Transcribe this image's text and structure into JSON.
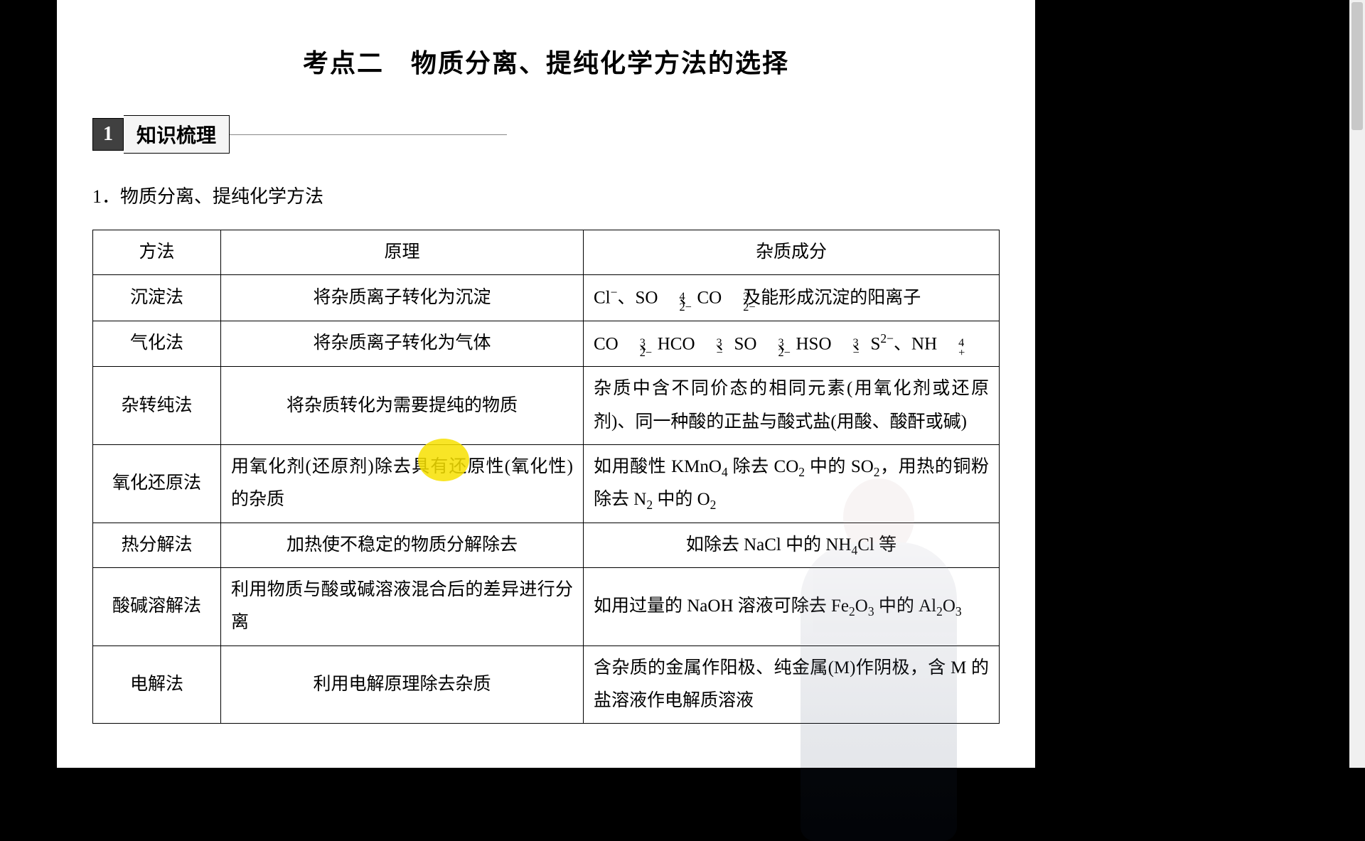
{
  "title": "考点二　物质分离、提纯化学方法的选择",
  "section": {
    "num": "1",
    "label": "知识梳理"
  },
  "sub_heading": "1．物质分离、提纯化学方法",
  "table": {
    "headers": {
      "method": "方法",
      "principle": "原理",
      "impurity": "杂质成分"
    },
    "rows": [
      {
        "method": "沉淀法",
        "principle": "将杂质离子转化为沉淀",
        "principle_align": "center",
        "impurity_html": "Cl<sup>−</sup>、SO<span class='ion ion-pad'><span class='up'>2−</span><span class='dn'>4</span></span>、CO<span class='ion ion-pad'><span class='up'>2−</span><span class='dn'>3</span></span>及能形成沉淀的阳离子",
        "impurity_align": "left"
      },
      {
        "method": "气化法",
        "principle": "将杂质离子转化为气体",
        "principle_align": "center",
        "impurity_html": "CO<span class='ion ion-pad'><span class='up'>2−</span><span class='dn'>3</span></span>、HCO<span class='ion ion-pad'><span class='up'>−</span><span class='dn'>3</span></span>、SO<span class='ion ion-pad'><span class='up'>2−</span><span class='dn'>3</span></span>、HSO<span class='ion ion-pad'><span class='up'>−</span><span class='dn'>3</span></span>、S<sup>2−</sup>、NH<span class='ion ion-pad'><span class='up'>+</span><span class='dn'>4</span></span>",
        "impurity_align": "left"
      },
      {
        "method": "杂转纯法",
        "principle": "将杂质转化为需要提纯的物质",
        "principle_align": "center",
        "impurity_html": "杂质中含不同价态的相同元素(用氧化剂或还原剂)、同一种酸的正盐与酸式盐(用酸、酸酐或碱)",
        "impurity_align": "left"
      },
      {
        "method": "氧化还原法",
        "principle": "用氧化剂(还原剂)除去具有还原性(氧化性)的杂质",
        "principle_align": "left",
        "impurity_html": "如用酸性 KMnO<sub>4</sub> 除去 CO<sub>2</sub> 中的 SO<sub>2</sub>，用热的铜粉除去 N<sub>2</sub> 中的 O<sub>2</sub>",
        "impurity_align": "left"
      },
      {
        "method": "热分解法",
        "principle": "加热使不稳定的物质分解除去",
        "principle_align": "center",
        "impurity_html": "如除去 NaCl 中的 NH<sub>4</sub>Cl 等",
        "impurity_align": "center"
      },
      {
        "method": "酸碱溶解法",
        "principle": "利用物质与酸或碱溶液混合后的差异进行分离",
        "principle_align": "left",
        "impurity_html": "如用过量的 NaOH 溶液可除去 Fe<sub>2</sub>O<sub>3</sub> 中的 Al<sub>2</sub>O<sub>3</sub>",
        "impurity_align": "left"
      },
      {
        "method": "电解法",
        "principle": "利用电解原理除去杂质",
        "principle_align": "center",
        "impurity_html": "含杂质的金属作阳极、纯金属(M)作阴极，含 M 的盐溶液作电解质溶液",
        "impurity_align": "left"
      }
    ]
  },
  "highlight": {
    "color": "#f7e100"
  },
  "colors": {
    "page_bg": "#ffffff",
    "outer_bg": "#000000",
    "border": "#000000",
    "section_num_bg": "#404040",
    "section_num_fg": "#ffffff",
    "section_label_bg": "#f5f5f5",
    "scrollbar_track": "#f0f0f0",
    "scrollbar_thumb": "#c8c8c8"
  }
}
